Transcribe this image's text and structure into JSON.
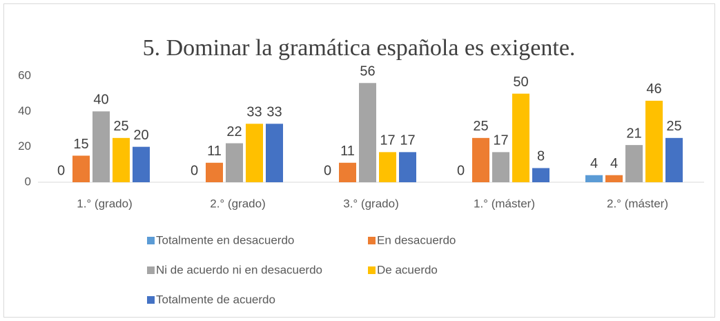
{
  "chart_data": {
    "type": "bar",
    "title": "5. Dominar la gramática española es exigente.",
    "categories": [
      "1.° (grado)",
      "2.° (grado)",
      "3.° (grado)",
      "1.° (máster)",
      "2.° (máster)"
    ],
    "series": [
      {
        "name": "Totalmente en desacuerdo",
        "color": "#5b9bd5",
        "values": [
          0,
          0,
          0,
          0,
          4
        ]
      },
      {
        "name": "En desacuerdo",
        "color": "#ed7d31",
        "values": [
          15,
          11,
          11,
          25,
          4
        ]
      },
      {
        "name": "Ni de acuerdo ni en desacuerdo",
        "color": "#a5a5a5",
        "values": [
          40,
          22,
          56,
          17,
          21
        ]
      },
      {
        "name": "De acuerdo",
        "color": "#ffc000",
        "values": [
          25,
          33,
          17,
          50,
          46
        ]
      },
      {
        "name": "Totalmente de acuerdo",
        "color": "#4472c4",
        "values": [
          20,
          33,
          17,
          8,
          25
        ]
      }
    ],
    "ylim": [
      0,
      60
    ],
    "yticks": [
      0,
      20,
      40,
      60
    ],
    "grid": false,
    "legend": "bottom"
  }
}
